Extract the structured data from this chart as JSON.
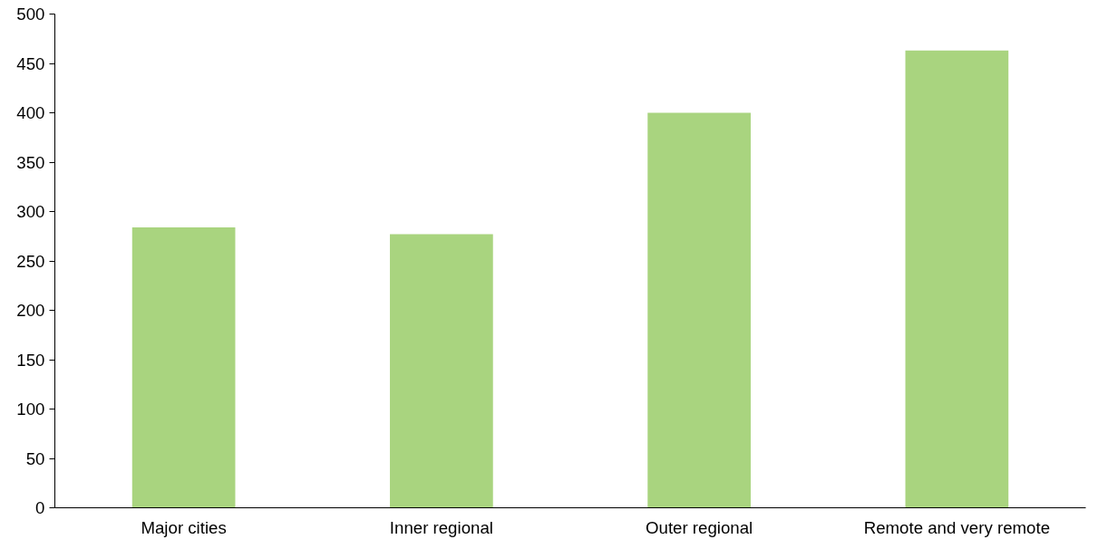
{
  "chart_data": {
    "type": "bar",
    "categories": [
      "Major cities",
      "Inner regional",
      "Outer regional",
      "Remote and very remote"
    ],
    "values": [
      284,
      277,
      400,
      463
    ],
    "color": "#a9d47f",
    "ylim": [
      0,
      500
    ],
    "yticks": [
      0,
      50,
      100,
      150,
      200,
      250,
      300,
      350,
      400,
      450,
      500
    ],
    "grid": false
  }
}
